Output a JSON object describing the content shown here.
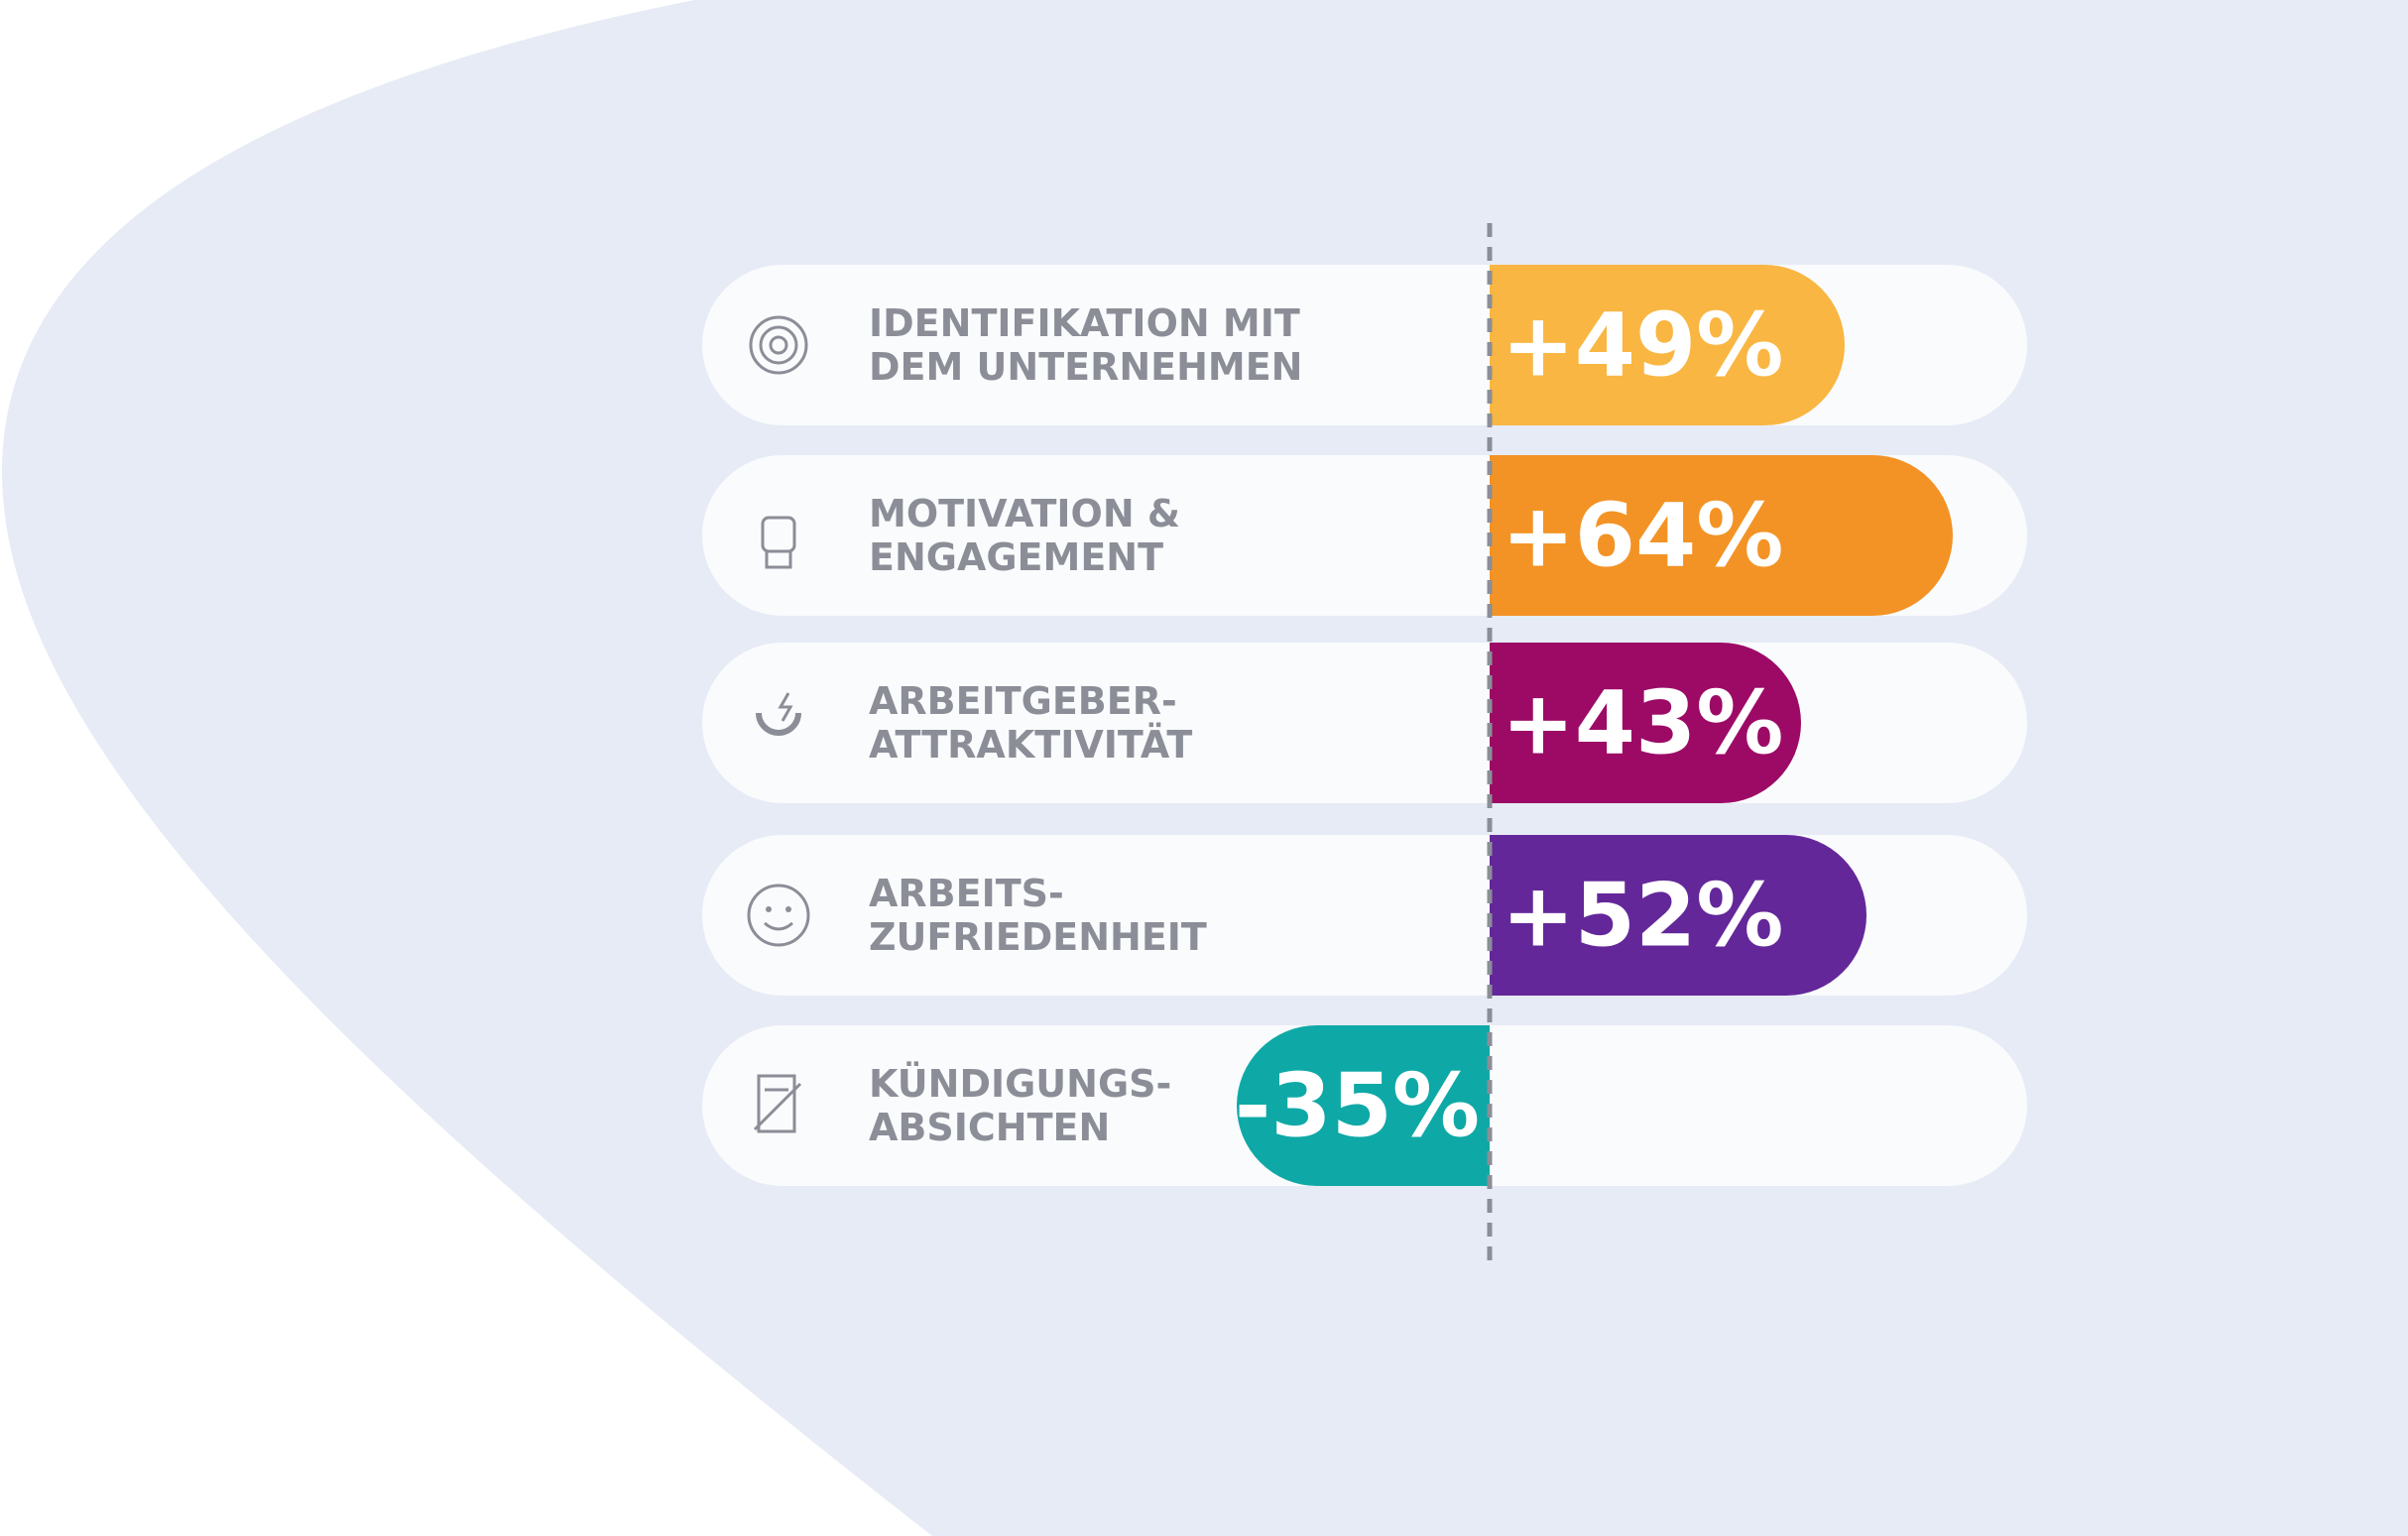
{
  "chart_data": {
    "type": "bar",
    "categories": [
      "IDENTIFIKATION MIT\nDEM UNTERNEHMEN",
      "MOTIVATION &\nENGAGEMENT",
      "ARBEITGEBER-\nATTRAKTIVITÄT",
      "ARBEITS-\nZUFRIEDENHEIT",
      "KÜNDIGUNGS-\nABSICHTEN"
    ],
    "values": [
      49,
      64,
      43,
      52,
      -35
    ],
    "value_labels": [
      "+49%",
      "+64%",
      "+43%",
      "+52%",
      "-35%"
    ],
    "colors": [
      "#f9b642",
      "#f39325",
      "#9c0a66",
      "#63279a",
      "#0ea9a6"
    ]
  }
}
